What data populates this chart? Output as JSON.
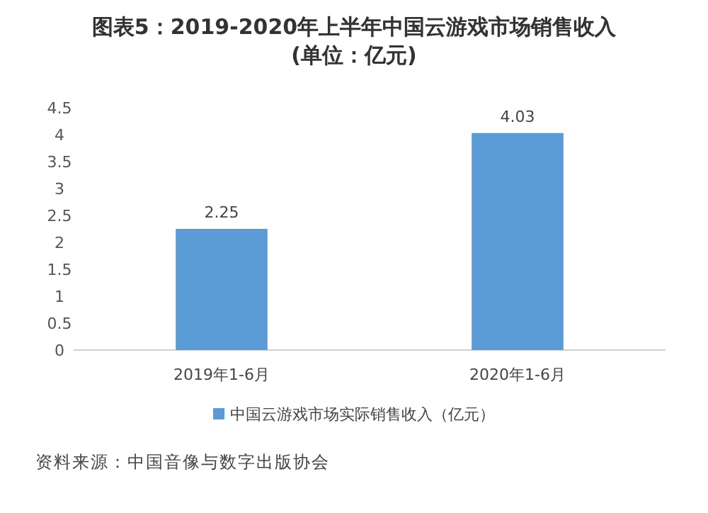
{
  "chart_data": {
    "type": "bar",
    "title": "图表5：2019-2020年上半年中国云游戏市场销售收入",
    "subtitle": "(单位：亿元)",
    "categories": [
      "2019年1-6月",
      "2020年1-6月"
    ],
    "series": [
      {
        "name": "中国云游戏市场实际销售收入（亿元）",
        "color": "#5b9bd5",
        "values": [
          2.25,
          4.03
        ]
      }
    ],
    "ylim": [
      0,
      4.5
    ],
    "yticks": [
      0,
      0.5,
      1,
      1.5,
      2,
      2.5,
      3,
      3.5,
      4,
      4.5
    ],
    "data_labels": true,
    "legend": "bottom",
    "grid": false,
    "annotations": [
      "资料来源：中国音像与数字出版协会"
    ]
  }
}
